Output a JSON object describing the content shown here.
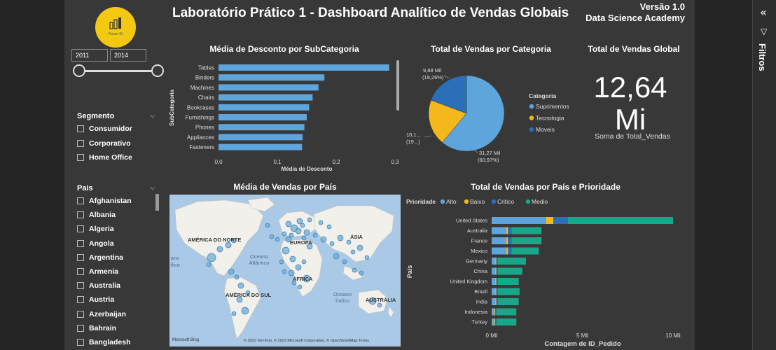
{
  "header": {
    "title": "Laboratório Prático 1 - Dashboard Analítico de Vendas Globais",
    "version": "Versão 1.0",
    "org": "Data Science Academy",
    "logo_text": "Power BI"
  },
  "date_slicer": {
    "start": "2011",
    "end": "2014",
    "range_start_fraction": 0.0,
    "range_end_fraction": 1.0
  },
  "segmento_slicer": {
    "title": "Segmento",
    "items": [
      "Consumidor",
      "Corporativo",
      "Home Office"
    ]
  },
  "pais_slicer": {
    "title": "Pais",
    "items": [
      "Afghanistan",
      "Albania",
      "Algeria",
      "Angola",
      "Argentina",
      "Armenia",
      "Australia",
      "Austria",
      "Azerbaijan",
      "Bahrain",
      "Bangladesh"
    ]
  },
  "filter_pane": {
    "label": "Filtros"
  },
  "discount_chart": {
    "title": "Média de Desconto por SubCategoria",
    "xlabel": "Média de Desconto",
    "ylabel": "SubCategoria",
    "x_ticks": [
      "0,0",
      "0,1",
      "0,2",
      "0,3"
    ]
  },
  "category_pie": {
    "title": "Total de Vendas por Categoria",
    "legend_title": "Categoria",
    "labels": {
      "moveis": [
        "9,88 Mil",
        "(19,26%)"
      ],
      "tecnologia": [
        "10,1...",
        "(19...)"
      ],
      "suprimentos": [
        "31,27 Mil",
        "(60,97%)"
      ]
    }
  },
  "kpi": {
    "title": "Total de Vendas Global",
    "value_line1": "12,64",
    "value_line2": "Mi",
    "subtitle": "Soma de Total_Vendas"
  },
  "map_visual": {
    "title": "Média de Vendas por País",
    "continents": [
      "AMÉRICA DO NORTE",
      "EUROPA",
      "ÁSIA",
      "ÁFRICA",
      "AMÉRICA DO SUL",
      "AUSTRÁLIA"
    ],
    "oceans": [
      "Oceano Atlântico",
      "Oceano Índico",
      "ano",
      "ífico"
    ],
    "attribution": "© 2023 TomTom, © 2023 Microsoft Corporation, © OpenStreetMap  Terms",
    "provider": "Microsoft Bing"
  },
  "country_chart": {
    "title": "Total de Vendas por País e Prioridade",
    "legend_title": "Prioridade",
    "xlabel": "Contagem de ID_Pedido",
    "ylabel": "País",
    "x_ticks": [
      "0 Mil",
      "5 Mil",
      "10 Mil"
    ]
  },
  "chart_data": [
    {
      "type": "bar",
      "orientation": "horizontal",
      "title": "Média de Desconto por SubCategoria",
      "xlabel": "Média de Desconto",
      "ylabel": "SubCategoria",
      "categories": [
        "Tables",
        "Binders",
        "Machines",
        "Chairs",
        "Bookcases",
        "Furnishings",
        "Phones",
        "Appliances",
        "Fasteners"
      ],
      "values": [
        0.29,
        0.18,
        0.17,
        0.16,
        0.154,
        0.15,
        0.146,
        0.143,
        0.142
      ],
      "xlim": [
        0,
        0.3
      ],
      "color": "#5ea5dc"
    },
    {
      "type": "pie",
      "title": "Total de Vendas por Categoria",
      "categories": [
        "Suprimentos",
        "Tecnologia",
        "Moveis"
      ],
      "values": [
        31.27,
        10.1,
        9.88
      ],
      "percent": [
        60.97,
        19.77,
        19.26
      ],
      "colors": [
        "#5ea5dc",
        "#f5b81c",
        "#2b6fb8"
      ],
      "legend": "right"
    },
    {
      "type": "bar",
      "orientation": "horizontal",
      "stacked": true,
      "title": "Total de Vendas por País e Prioridade",
      "xlabel": "Contagem de ID_Pedido",
      "ylabel": "País",
      "categories": [
        "United States",
        "Australia",
        "France",
        "Mexico",
        "Germany",
        "China",
        "United Kingdom",
        "Brazil",
        "India",
        "Indonesia",
        "Turkey"
      ],
      "series": [
        {
          "name": "Alto",
          "color": "#5ea5dc",
          "values": [
            3000,
            800,
            800,
            800,
            200,
            200,
            200,
            200,
            200,
            150,
            150
          ]
        },
        {
          "name": "Baixo",
          "color": "#f5b81c",
          "values": [
            400,
            100,
            100,
            100,
            60,
            60,
            60,
            60,
            60,
            50,
            50
          ]
        },
        {
          "name": "Critico",
          "color": "#2b6fb8",
          "values": [
            800,
            200,
            200,
            200,
            80,
            80,
            80,
            80,
            80,
            60,
            60
          ]
        },
        {
          "name": "Medio",
          "color": "#17a88a",
          "values": [
            5800,
            1650,
            1650,
            1500,
            1550,
            1350,
            1150,
            1200,
            1150,
            1100,
            1100
          ]
        }
      ],
      "xlim": [
        0,
        10000
      ],
      "legend": "top-left"
    }
  ]
}
